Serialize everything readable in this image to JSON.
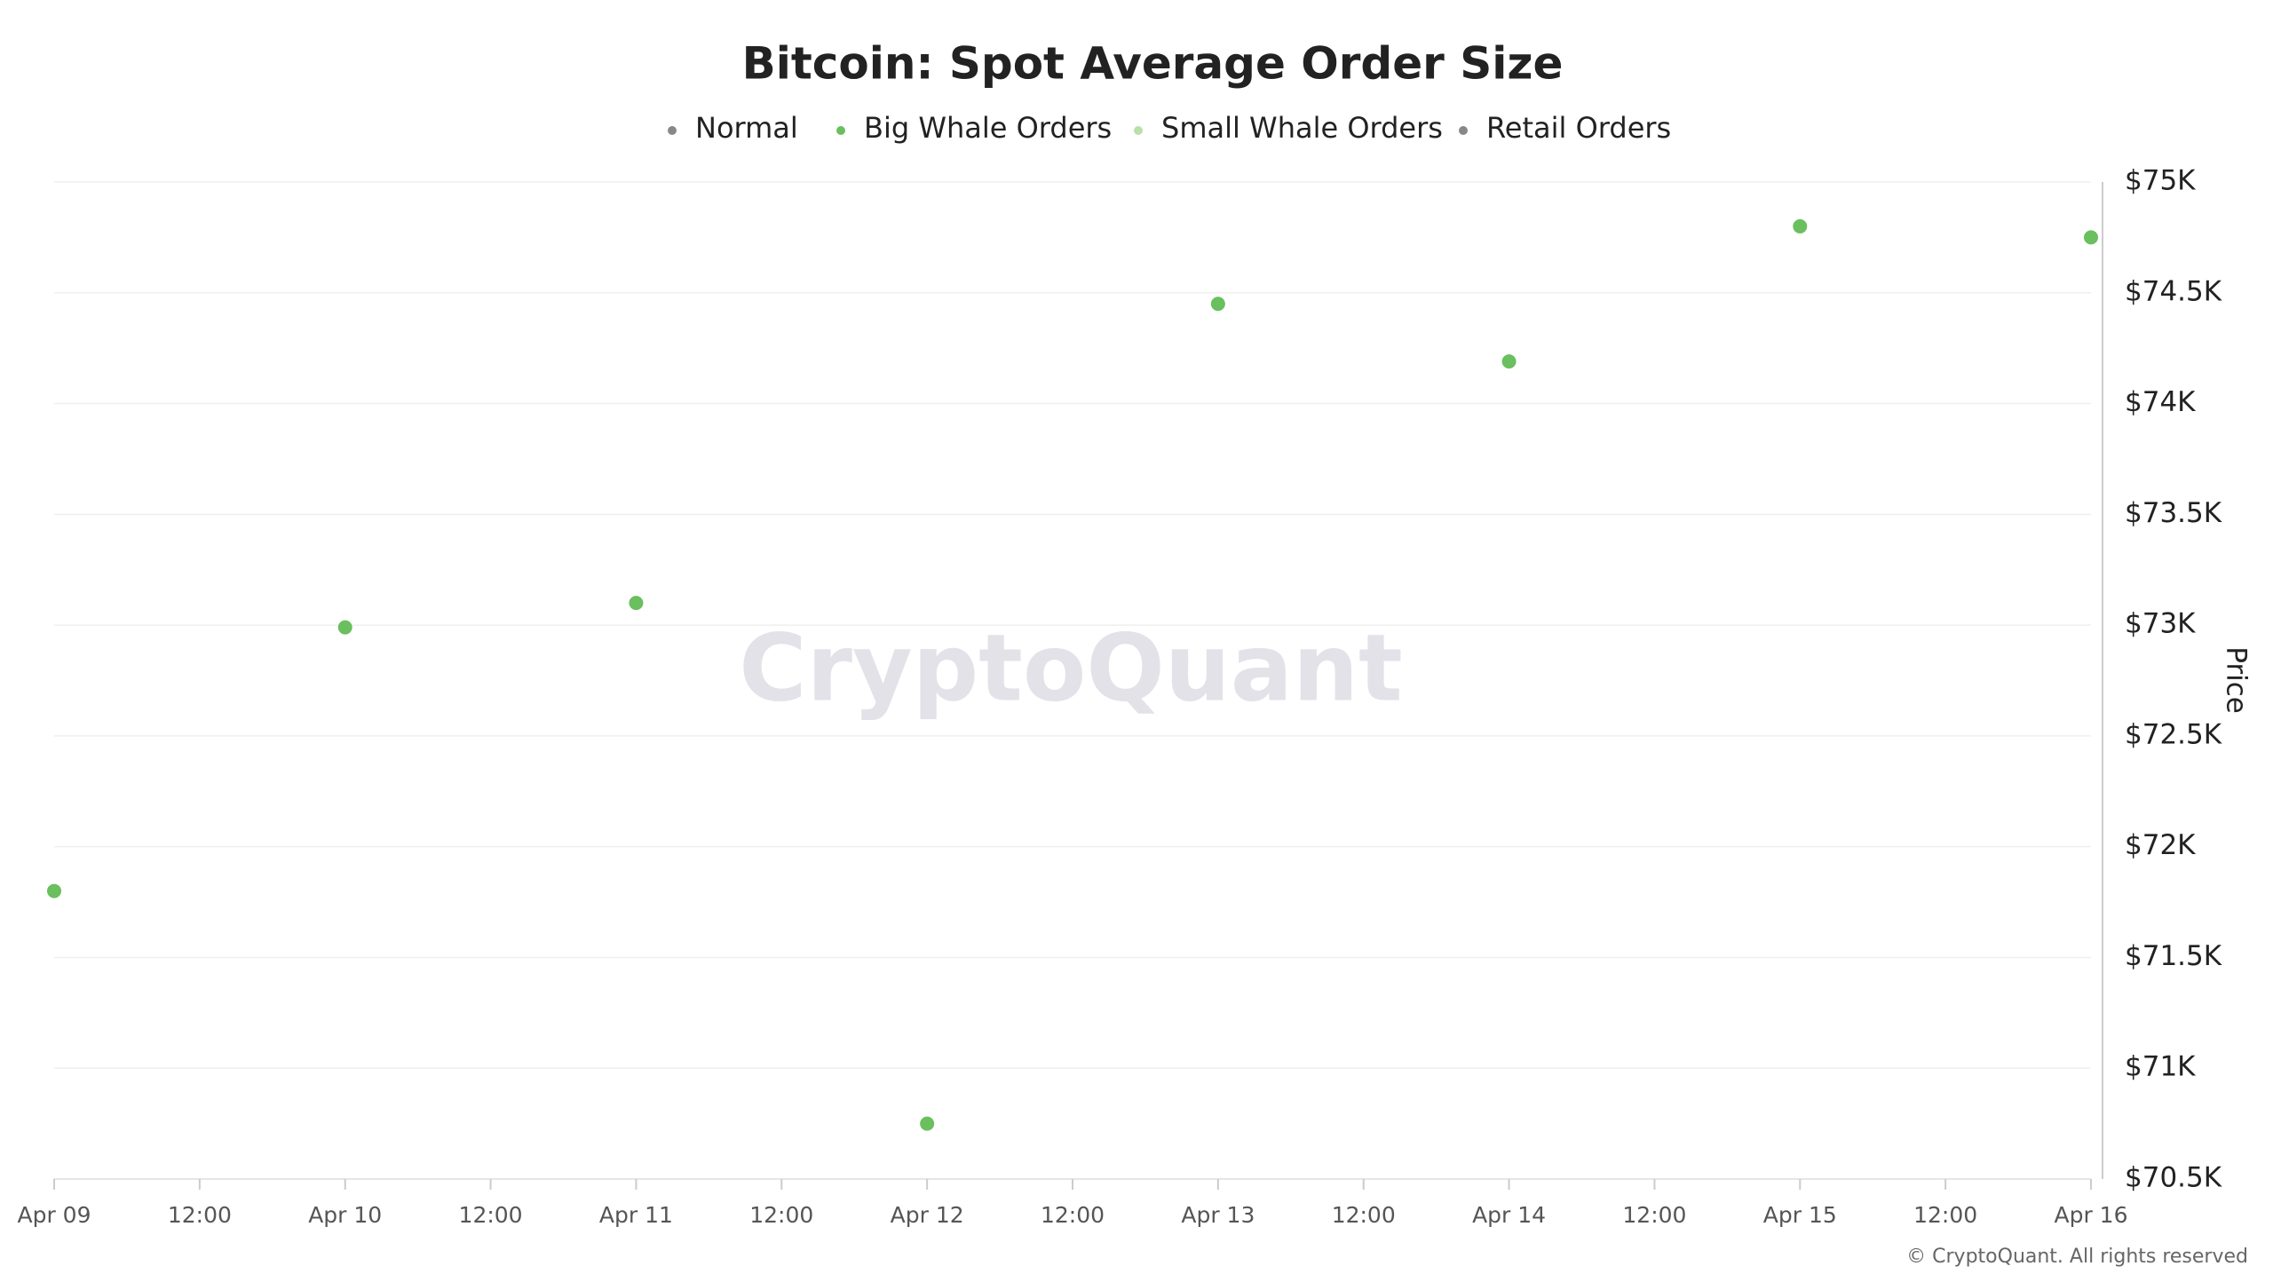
{
  "chart_data": {
    "type": "scatter",
    "title": "Bitcoin: Spot Average Order Size",
    "categories": [
      "Apr 09",
      "Apr 10",
      "Apr 11",
      "Apr 12",
      "Apr 13",
      "Apr 14",
      "Apr 15",
      "Apr 16"
    ],
    "x_tick_labels": [
      "Apr 09",
      "12:00",
      "Apr 10",
      "12:00",
      "Apr 11",
      "12:00",
      "Apr 12",
      "12:00",
      "Apr 13",
      "12:00",
      "Apr 14",
      "12:00",
      "Apr 15",
      "12:00",
      "Apr 16"
    ],
    "series": [
      {
        "name": "Normal",
        "color": "#888888",
        "values": [
          null,
          null,
          null,
          null,
          null,
          null,
          null,
          null
        ]
      },
      {
        "name": "Big Whale Orders",
        "color": "#6abf5e",
        "values": [
          71800,
          72990,
          73100,
          70750,
          74450,
          74190,
          74800,
          74750
        ]
      },
      {
        "name": "Small Whale Orders",
        "color": "#b8e0a8",
        "values": [
          null,
          null,
          null,
          null,
          null,
          null,
          null,
          null
        ]
      },
      {
        "name": "Retail Orders",
        "color": "#888888",
        "values": [
          null,
          null,
          null,
          null,
          null,
          null,
          null,
          null
        ]
      }
    ],
    "y_axis_label": "Price",
    "ylim": [
      70500,
      75000
    ],
    "yticks": [
      {
        "value": 70500,
        "label": "$70.5K"
      },
      {
        "value": 71000,
        "label": "$71K"
      },
      {
        "value": 71500,
        "label": "$71.5K"
      },
      {
        "value": 72000,
        "label": "$72K"
      },
      {
        "value": 72500,
        "label": "$72.5K"
      },
      {
        "value": 73000,
        "label": "$73K"
      },
      {
        "value": 73500,
        "label": "$73.5K"
      },
      {
        "value": 74000,
        "label": "$74K"
      },
      {
        "value": 74500,
        "label": "$74.5K"
      },
      {
        "value": 75000,
        "label": "$75K"
      }
    ],
    "grid": true,
    "watermark": "CryptoQuant",
    "footer": "© CryptoQuant. All rights reserved"
  }
}
